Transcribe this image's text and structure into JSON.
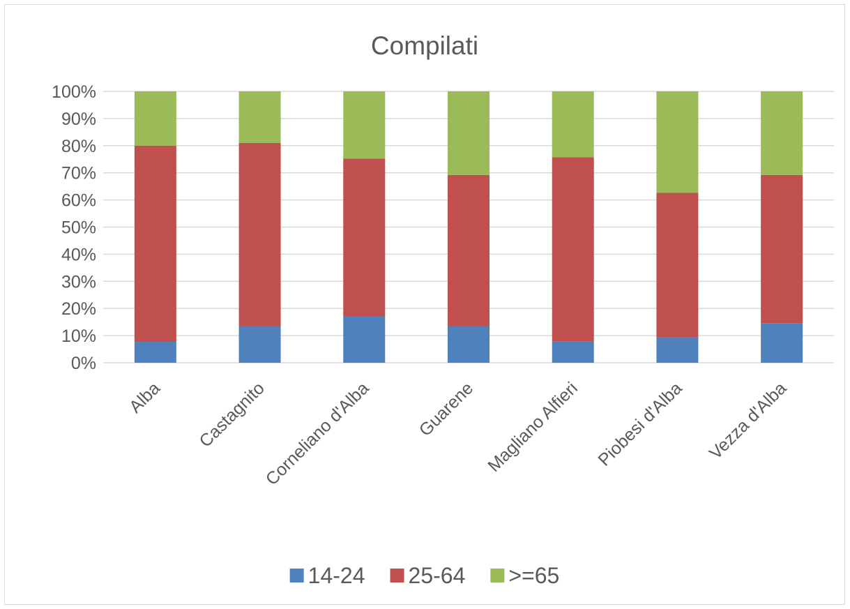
{
  "chart_data": {
    "type": "bar",
    "stacked": true,
    "percent_stacked": true,
    "title": "Compilati",
    "categories": [
      "Alba",
      "Castagnito",
      "Corneliano d'Alba",
      "Guarene",
      "Magliano Alfieri",
      "Piobesi d'Alba",
      "Vezza d'Alba"
    ],
    "series": [
      {
        "name": "14-24",
        "color": "#4f81bd",
        "values": [
          7.7,
          13.5,
          17.1,
          13.5,
          7.8,
          9.4,
          14.6
        ]
      },
      {
        "name": "25-64",
        "color": "#c0504d",
        "values": [
          72.3,
          67.5,
          58.1,
          55.7,
          67.9,
          53.2,
          54.6
        ]
      },
      {
        "name": ">=65",
        "color": "#9bbb59",
        "values": [
          20.0,
          19.0,
          24.8,
          30.8,
          24.3,
          37.4,
          30.8
        ]
      }
    ],
    "y_ticks": [
      "0%",
      "10%",
      "20%",
      "30%",
      "40%",
      "50%",
      "60%",
      "70%",
      "80%",
      "90%",
      "100%"
    ],
    "ylim": [
      0,
      100
    ],
    "grid": true,
    "legend_position": "bottom"
  }
}
